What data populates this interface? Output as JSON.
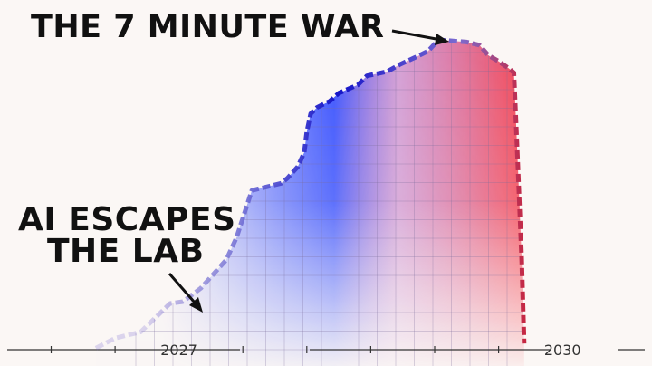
{
  "chart_data": {
    "type": "area",
    "annotations": [
      {
        "id": "peak",
        "lines": [
          "THE 7 MINUTE WAR"
        ]
      },
      {
        "id": "escape",
        "lines": [
          "AI ESCAPES",
          "THE LAB"
        ]
      }
    ],
    "xlim": [
      2025.6,
      2030.7
    ],
    "ylim": [
      0,
      100
    ],
    "x_tick_labels": [
      {
        "x": 2027,
        "label": "2027"
      },
      {
        "x": 2030,
        "label": "2030"
      }
    ],
    "x_minor_ticks": [
      2026.0,
      2026.5,
      2027.5,
      2028.0,
      2028.5,
      2029.0,
      2029.5
    ],
    "grid": true,
    "gradient_colors": {
      "start": "#1f3bff",
      "end": "#ff2020"
    },
    "line_colors": {
      "start": "#1515c8",
      "mid": "#7b6bd0",
      "end": "#e01010"
    },
    "series": [
      {
        "values": [
          [
            2026.35,
            0.5
          ],
          [
            2026.5,
            3.7
          ],
          [
            2026.7,
            5.7
          ],
          [
            2026.93,
            14.9
          ],
          [
            2027.03,
            15.5
          ],
          [
            2027.17,
            19.8
          ],
          [
            2027.37,
            29.0
          ],
          [
            2027.45,
            36.2
          ],
          [
            2027.57,
            51.4
          ],
          [
            2027.67,
            52.4
          ],
          [
            2027.8,
            53.7
          ],
          [
            2027.85,
            55.4
          ],
          [
            2027.93,
            59.1
          ],
          [
            2027.98,
            63.7
          ],
          [
            2028.0,
            70.3
          ],
          [
            2028.03,
            76.2
          ],
          [
            2028.08,
            78.2
          ],
          [
            2028.18,
            80.2
          ],
          [
            2028.25,
            82.8
          ],
          [
            2028.4,
            85.5
          ],
          [
            2028.47,
            88.4
          ],
          [
            2028.63,
            89.8
          ],
          [
            2028.73,
            92.1
          ],
          [
            2028.85,
            94.4
          ],
          [
            2028.95,
            96.4
          ],
          [
            2029.03,
            100.0
          ],
          [
            2029.25,
            99.3
          ],
          [
            2029.35,
            98.3
          ],
          [
            2029.42,
            95.0
          ],
          [
            2029.5,
            93.1
          ],
          [
            2029.58,
            90.8
          ],
          [
            2029.62,
            89.4
          ],
          [
            2029.65,
            60.0
          ],
          [
            2029.68,
            30.0
          ],
          [
            2029.7,
            2.0
          ]
        ]
      }
    ]
  }
}
